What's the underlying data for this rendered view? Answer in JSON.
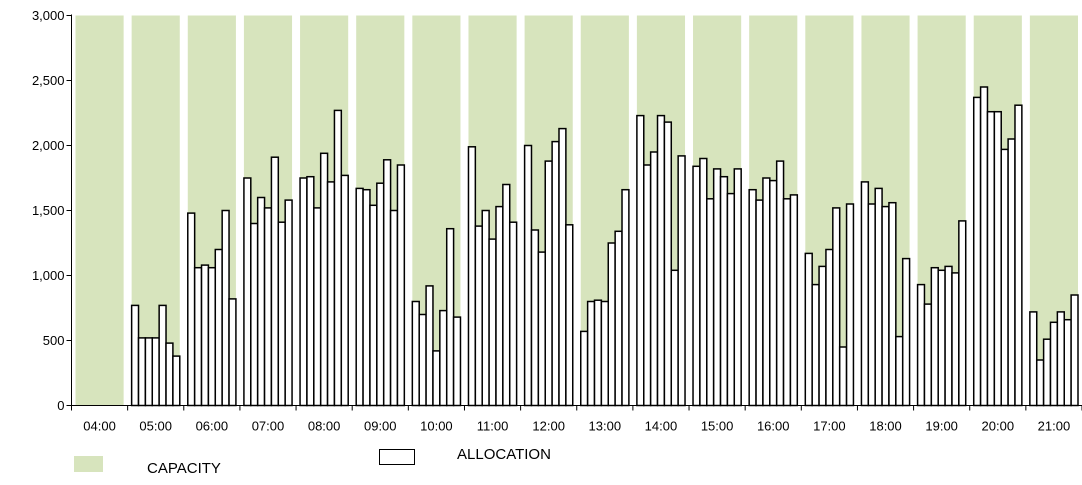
{
  "chart_data": {
    "type": "bar",
    "title": "",
    "xlabel": "",
    "ylabel": "",
    "ylim": [
      0,
      3000
    ],
    "yticks": [
      0,
      500,
      1000,
      1500,
      2000,
      2500,
      3000
    ],
    "ytick_labels": [
      "0",
      "500",
      "1,000",
      "1,500",
      "2,000",
      "2,500",
      "3,000"
    ],
    "categories": [
      "04:00",
      "05:00",
      "06:00",
      "07:00",
      "08:00",
      "09:00",
      "10:00",
      "11:00",
      "12:00",
      "13:00",
      "14:00",
      "15:00",
      "16:00",
      "17:00",
      "18:00",
      "19:00",
      "20:00",
      "21:00"
    ],
    "grid": false,
    "legend_position": "bottom-left",
    "series": [
      {
        "name": "CAPACITY",
        "kind": "band",
        "color": "#d7e4bd",
        "values": [
          3000,
          3000,
          3000,
          3000,
          3000,
          3000,
          3000,
          3000,
          3000,
          3000,
          3000,
          3000,
          3000,
          3000,
          3000,
          3000,
          3000,
          3000
        ]
      },
      {
        "name": "ALLOCATION",
        "kind": "sub-bars",
        "fill": "#ffffff",
        "stroke": "#000000",
        "values": [
          [],
          [
            770,
            520,
            520,
            520,
            770,
            480,
            380
          ],
          [
            1480,
            1060,
            1080,
            1060,
            1200,
            1500,
            820
          ],
          [
            1750,
            1400,
            1600,
            1520,
            1910,
            1410,
            1580
          ],
          [
            1750,
            1760,
            1520,
            1940,
            1720,
            2270,
            1770
          ],
          [
            1670,
            1660,
            1540,
            1710,
            1890,
            1500,
            1850
          ],
          [
            800,
            700,
            920,
            420,
            730,
            1360,
            680
          ],
          [
            1990,
            1380,
            1500,
            1280,
            1530,
            1700,
            1410
          ],
          [
            2000,
            1350,
            1180,
            1880,
            2030,
            2130,
            1390
          ],
          [
            570,
            800,
            810,
            800,
            1250,
            1340,
            1660
          ],
          [
            2230,
            1850,
            1950,
            2230,
            2180,
            1040,
            1920
          ],
          [
            1840,
            1900,
            1590,
            1820,
            1760,
            1630,
            1820
          ],
          [
            1660,
            1580,
            1750,
            1730,
            1880,
            1590,
            1620
          ],
          [
            1170,
            930,
            1070,
            1200,
            1520,
            450,
            1550
          ],
          [
            1720,
            1550,
            1670,
            1530,
            1560,
            530,
            1130
          ],
          [
            930,
            780,
            1060,
            1040,
            1070,
            1020,
            1420
          ],
          [
            2370,
            2450,
            2260,
            2260,
            1970,
            2050,
            2310
          ],
          [
            720,
            350,
            510,
            640,
            720,
            660,
            850
          ]
        ]
      }
    ]
  }
}
